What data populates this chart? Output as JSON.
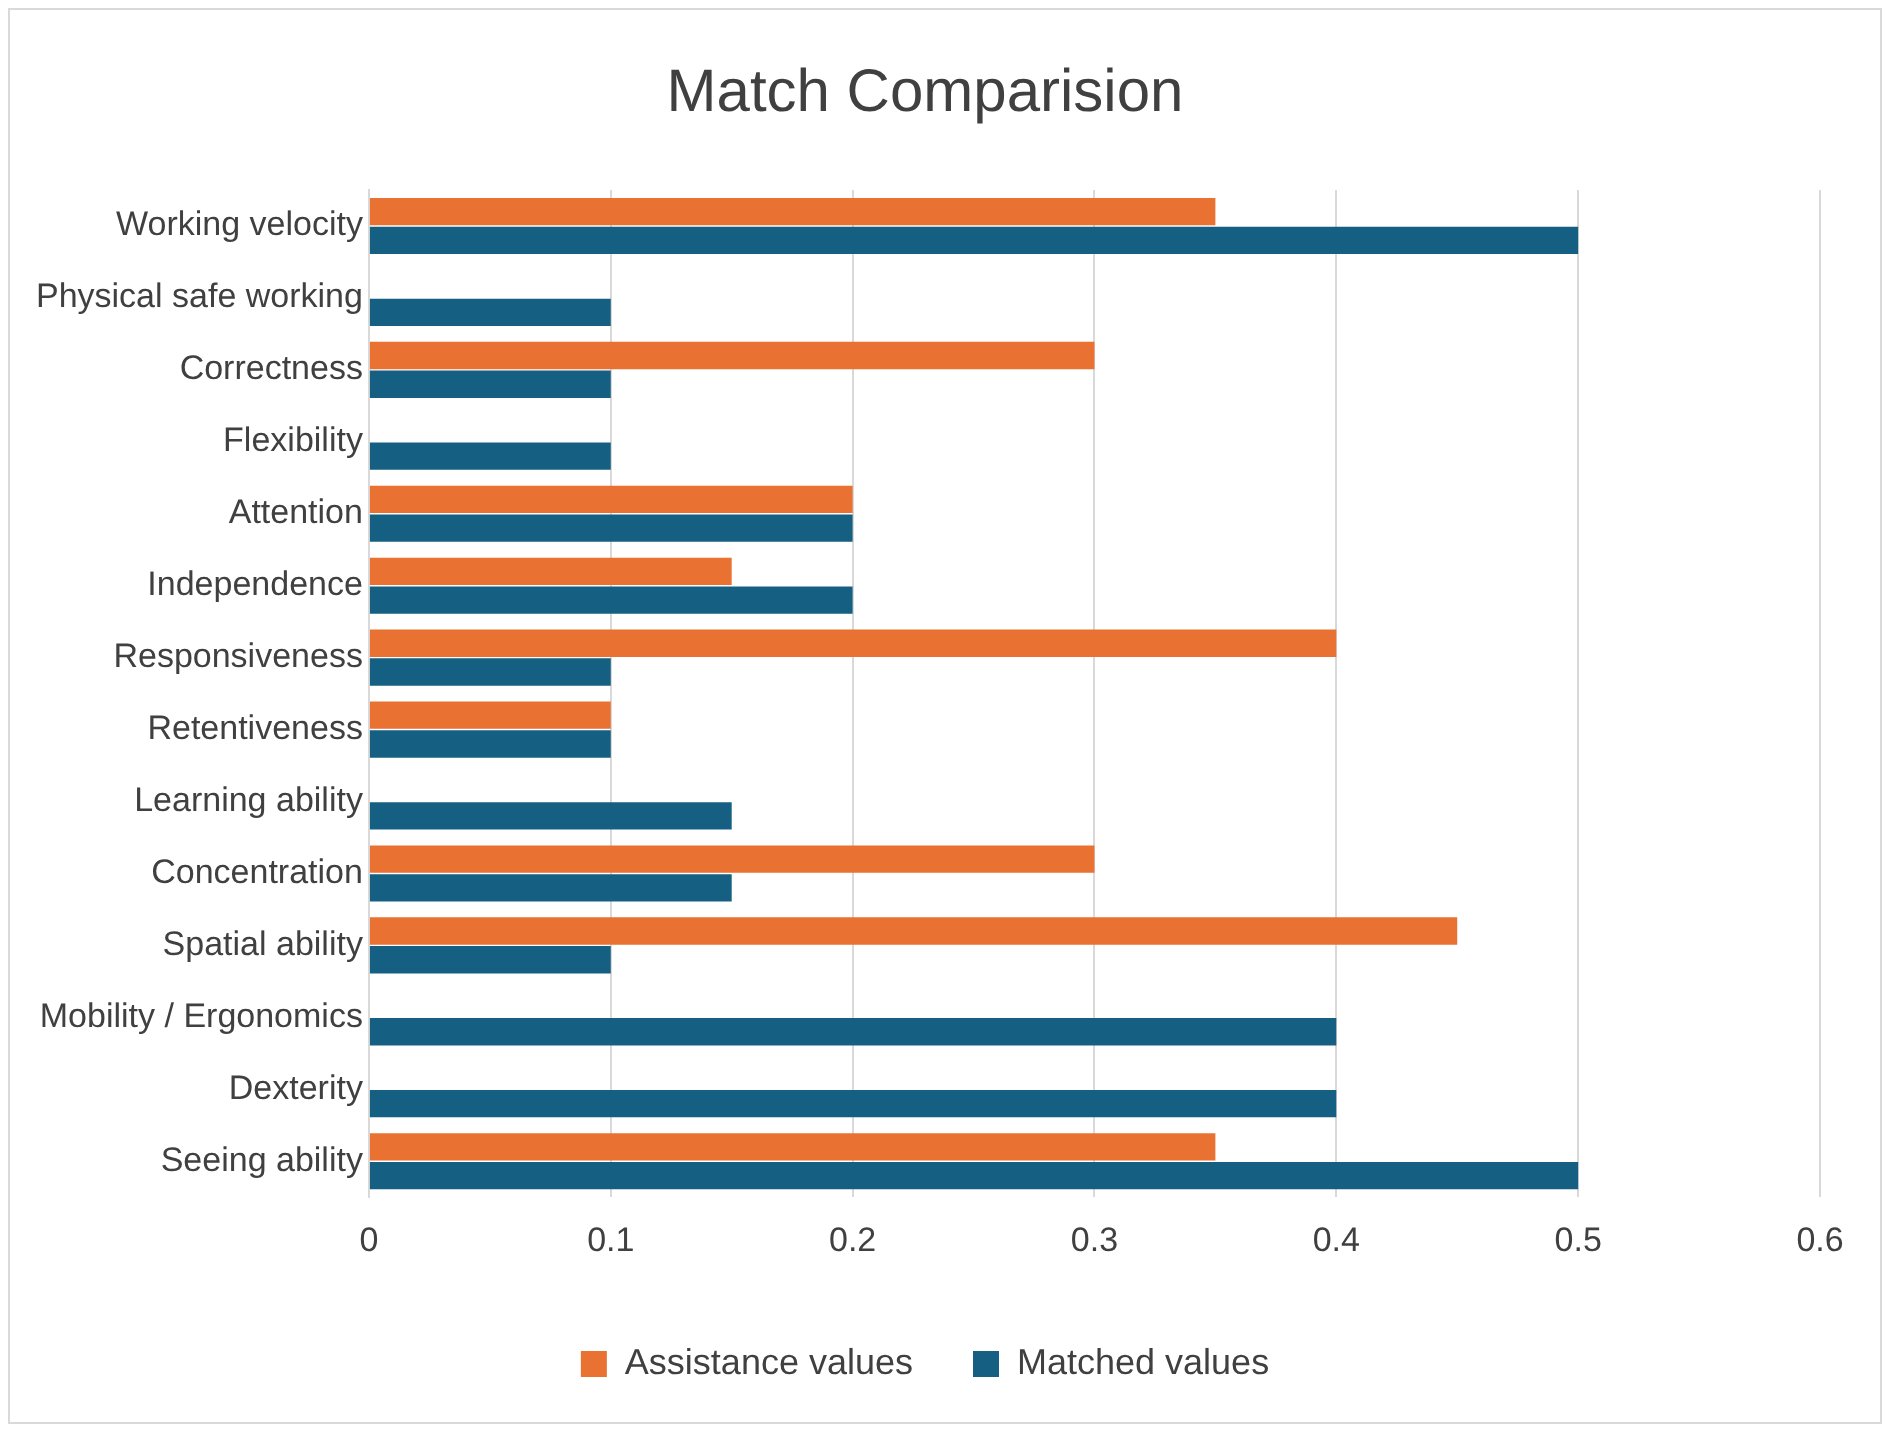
{
  "chart_data": {
    "type": "bar",
    "orientation": "horizontal",
    "title": "Match Comparision",
    "categories": [
      "Working velocity",
      "Physical safe working",
      "Correctness",
      "Flexibility",
      "Attention",
      "Independence",
      "Responsiveness",
      "Retentiveness",
      "Learning ability",
      "Concentration",
      "Spatial ability",
      "Mobility / Ergonomics",
      "Dexterity",
      "Seeing ability"
    ],
    "series": [
      {
        "name": "Assistance values",
        "color": "#e97132",
        "values": [
          0.35,
          null,
          0.3,
          null,
          0.2,
          0.15,
          0.4,
          0.1,
          null,
          0.3,
          0.45,
          null,
          null,
          0.35
        ]
      },
      {
        "name": "Matched values",
        "color": "#156082",
        "values": [
          0.5,
          0.1,
          0.1,
          0.1,
          0.2,
          0.2,
          0.1,
          0.1,
          0.15,
          0.15,
          0.1,
          0.4,
          0.4,
          0.5
        ]
      }
    ],
    "xlim": [
      0,
      0.6
    ],
    "xticks": [
      0,
      0.1,
      0.2,
      0.3,
      0.4,
      0.5,
      0.6
    ],
    "grid": "x",
    "legend": "bottom"
  }
}
